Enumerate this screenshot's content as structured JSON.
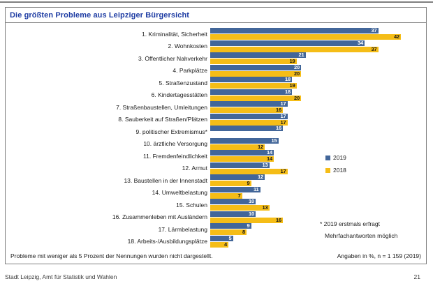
{
  "header": {
    "title": "Die größten Probleme aus Leipziger Bürgersicht"
  },
  "chart_data": {
    "type": "bar",
    "orientation": "horizontal",
    "unit": "%",
    "title": "Die größten Probleme aus Leipziger Bürgersicht",
    "categories": [
      "1. Kriminalität, Sicherheit",
      "2. Wohnkosten",
      "3. Öffentlicher Nahverkehr",
      "4. Parkplätze",
      "5. Straßenzustand",
      "6. Kindertagesstätten",
      "7. Straßenbaustellen, Umleitungen",
      "8. Sauberkeit auf Straßen/Plätzen",
      "9. politischer Extremismus*",
      "10. ärztliche Versorgung",
      "11. Fremdenfeindlichkeit",
      "12. Armut",
      "13. Baustellen in der Innenstadt",
      "14. Umweltbelastung",
      "15. Schulen",
      "16. Zusammenleben mit Ausländern",
      "17. Lärmbelastung",
      "18. Arbeits-/Ausbildungsplätze"
    ],
    "series": [
      {
        "name": "2019",
        "color": "#426699",
        "values": [
          37,
          34,
          21,
          20,
          18,
          18,
          17,
          17,
          16,
          15,
          14,
          13,
          12,
          11,
          10,
          10,
          9,
          5
        ]
      },
      {
        "name": "2018",
        "color": "#F5BD17",
        "values": [
          42,
          37,
          19,
          20,
          19,
          20,
          16,
          17,
          null,
          12,
          14,
          17,
          9,
          7,
          13,
          16,
          8,
          4
        ]
      }
    ],
    "xlim": [
      0,
      45
    ],
    "grid": false,
    "value_labels": true,
    "legend_position": "middle-right"
  },
  "annotations": {
    "line1": "* 2019 erstmals erfragt",
    "line2": "Mehrfachantworten möglich"
  },
  "footnotes": {
    "left": "Probleme mit weniger als 5 Prozent der Nennungen wurden nicht dargestellt.",
    "right": "Angaben in %, n = 1 159 (2019)"
  },
  "footer": {
    "left": "Stadt Leipzig, Amt für Statistik und Wahlen",
    "page_number": "21"
  }
}
